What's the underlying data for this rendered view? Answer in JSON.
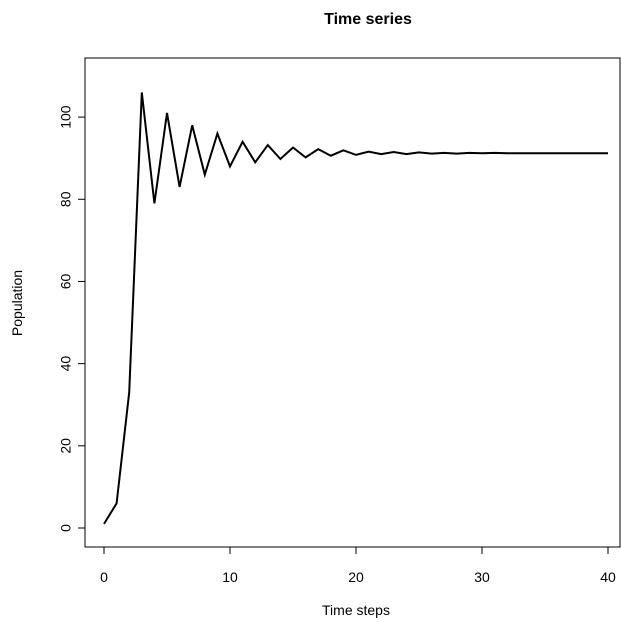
{
  "chart_data": {
    "type": "line",
    "title": "Time series",
    "xlabel": "Time steps",
    "ylabel": "Population",
    "xlim": [
      0,
      40
    ],
    "ylim": [
      0,
      110
    ],
    "x_ticks": [
      0,
      10,
      20,
      30,
      40
    ],
    "y_ticks": [
      0,
      20,
      40,
      60,
      80,
      100
    ],
    "x_tick_labels": [
      "0",
      "10",
      "20",
      "30",
      "40"
    ],
    "y_tick_labels": [
      "0",
      "20",
      "40",
      "60",
      "80",
      "100"
    ],
    "grid": false,
    "legend": "none",
    "line_color": "#000000",
    "x": [
      0,
      1,
      2,
      3,
      4,
      5,
      6,
      7,
      8,
      9,
      10,
      11,
      12,
      13,
      14,
      15,
      16,
      17,
      18,
      19,
      20,
      21,
      22,
      23,
      24,
      25,
      26,
      27,
      28,
      29,
      30,
      31,
      32,
      33,
      34,
      35,
      36,
      37,
      38,
      39,
      40
    ],
    "series": [
      {
        "values": [
          1,
          6,
          33,
          106,
          79,
          101,
          83,
          98,
          86,
          96,
          88,
          94,
          89,
          93.2,
          89.8,
          92.6,
          90.2,
          92.2,
          90.6,
          91.9,
          90.8,
          91.6,
          91.0,
          91.5,
          91.0,
          91.4,
          91.1,
          91.3,
          91.1,
          91.3,
          91.2,
          91.3,
          91.2,
          91.2,
          91.2,
          91.2,
          91.2,
          91.2,
          91.2,
          91.2,
          91.2
        ]
      }
    ]
  }
}
